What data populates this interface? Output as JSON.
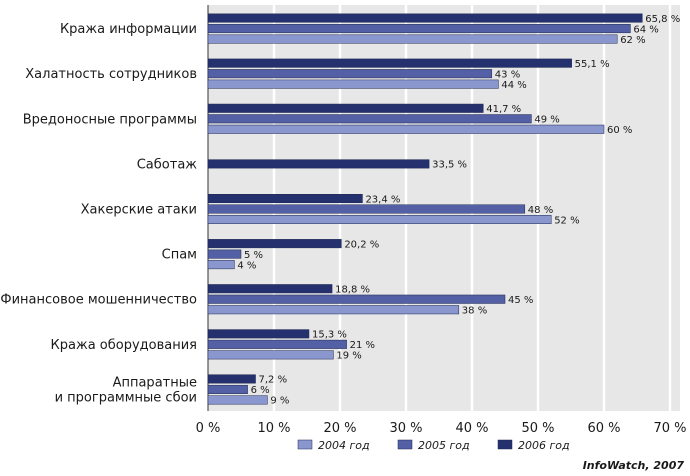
{
  "colors": {
    "plot_bg": "#e7e7e7",
    "grid": "#ffffff",
    "s2004": "#8a97cf",
    "s2005": "#5360a5",
    "s2006": "#25306e",
    "frame": "#333333"
  },
  "credit": "InfoWatch, 2007",
  "chart_data": {
    "type": "bar",
    "orientation": "horizontal",
    "xlim": [
      0,
      70
    ],
    "xticks": [
      0,
      10,
      20,
      30,
      40,
      50,
      60,
      70
    ],
    "tick_labels": [
      "0 %",
      "10 %",
      "20 %",
      "30 %",
      "40 %",
      "50 %",
      "60 %",
      "70 %"
    ],
    "grid": true,
    "legend_position": "bottom",
    "categories": [
      [
        "Кража информации"
      ],
      [
        "Халатность сотрудников"
      ],
      [
        "Вредоносные программы"
      ],
      [
        "Саботаж"
      ],
      [
        "Хакерские атаки"
      ],
      [
        "Спам"
      ],
      [
        "Финансовое мошенничество"
      ],
      [
        "Кража оборудования"
      ],
      [
        "Аппаратные",
        "и программные сбои"
      ]
    ],
    "series": [
      {
        "name": "2006 год",
        "key": "s2006",
        "values": [
          65.8,
          55.1,
          41.7,
          33.5,
          23.4,
          20.2,
          18.8,
          15.3,
          7.2
        ],
        "labels": [
          "65,8 %",
          "55,1 %",
          "41,7 %",
          "33,5 %",
          "23,4 %",
          "20,2 %",
          "18,8 %",
          "15,3 %",
          "7,2 %"
        ]
      },
      {
        "name": "2005 год",
        "key": "s2005",
        "values": [
          64,
          43,
          49,
          null,
          48,
          5,
          45,
          21,
          6
        ],
        "labels": [
          "64 %",
          "43 %",
          "49 %",
          "",
          "48 %",
          "5 %",
          "45 %",
          "21 %",
          "6 %"
        ]
      },
      {
        "name": "2004 год",
        "key": "s2004",
        "values": [
          62,
          44,
          60,
          null,
          52,
          4,
          38,
          19,
          9
        ],
        "labels": [
          "62 %",
          "44 %",
          "60 %",
          "",
          "52 %",
          "4 %",
          "38 %",
          "19 %",
          "9 %"
        ]
      }
    ],
    "legend": [
      {
        "name": "2004 год",
        "key": "s2004"
      },
      {
        "name": "2005 год",
        "key": "s2005"
      },
      {
        "name": "2006 год",
        "key": "s2006"
      }
    ]
  }
}
